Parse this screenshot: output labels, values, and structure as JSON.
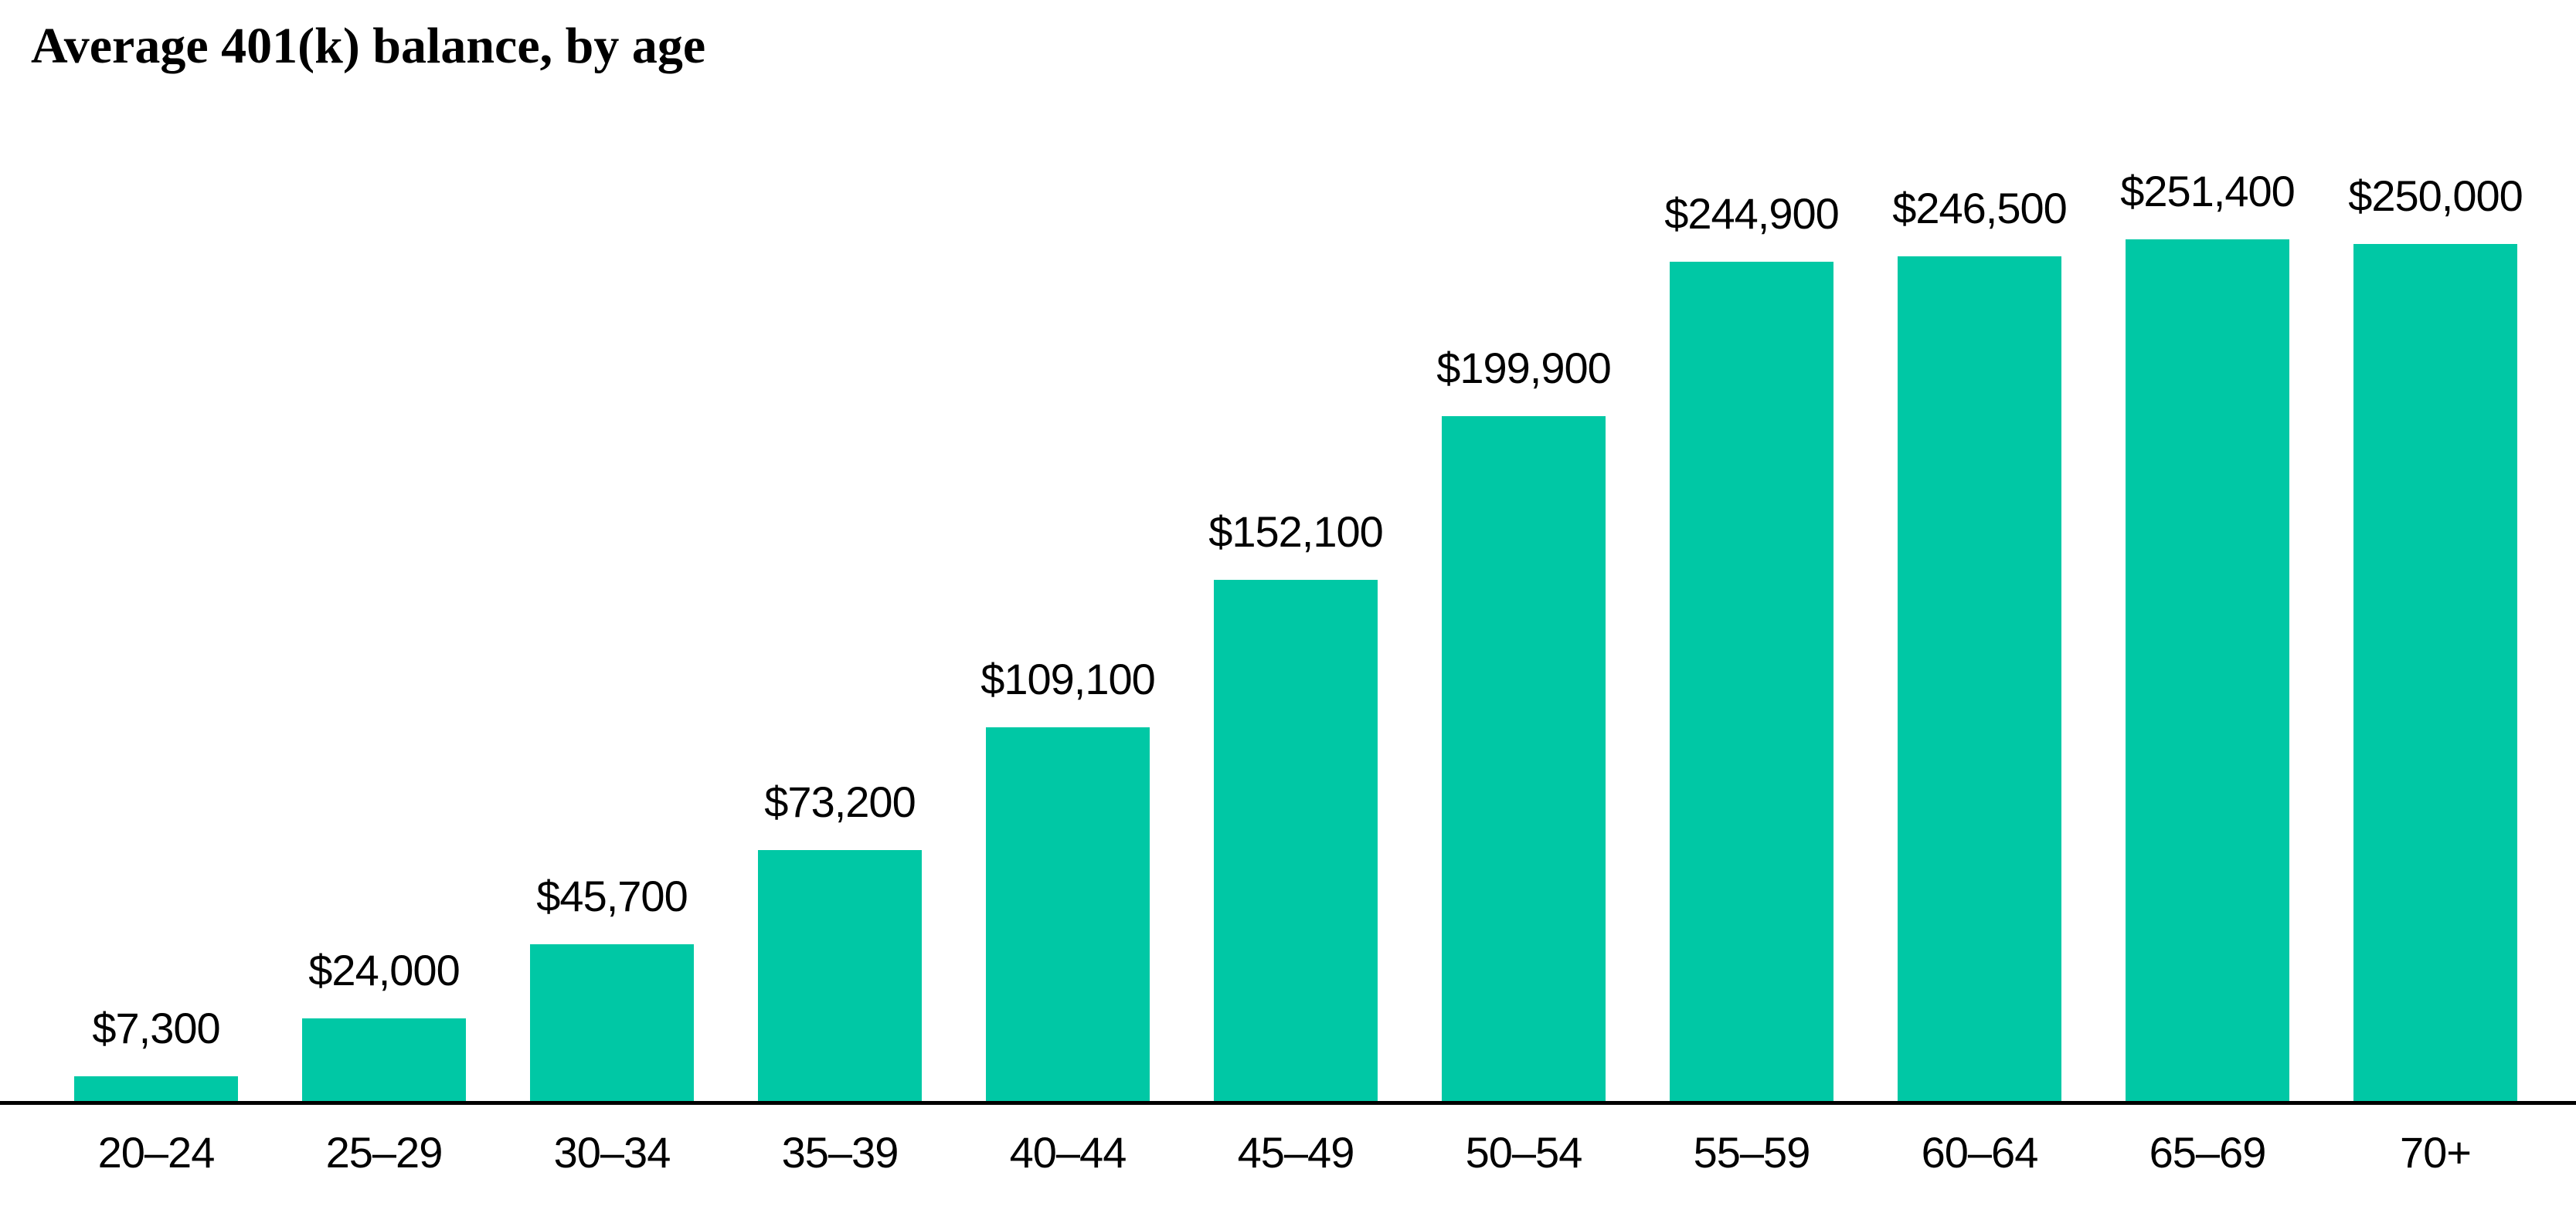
{
  "chart_data": {
    "type": "bar",
    "title": "Average 401(k) balance, by age",
    "categories": [
      "20–24",
      "25–29",
      "30–34",
      "35–39",
      "40–44",
      "45–49",
      "50–54",
      "55–59",
      "60–64",
      "65–69",
      "70+"
    ],
    "values": [
      7300,
      24000,
      45700,
      73200,
      109100,
      152100,
      199900,
      244900,
      246500,
      251400,
      250000
    ],
    "value_labels": [
      "$7,300",
      "$24,000",
      "$45,700",
      "$73,200",
      "$109,100",
      "$152,100",
      "$199,900",
      "$244,900",
      "$246,500",
      "$251,400",
      "$250,000"
    ],
    "xlabel": "",
    "ylabel": "",
    "ylim": [
      0,
      251400
    ],
    "grid": false,
    "legend": "none",
    "value_label_position": "above-bars",
    "bar_color": "#00c8a5",
    "axis_color": "#000000",
    "text_color": "#000000",
    "background_color": "#ffffff"
  }
}
